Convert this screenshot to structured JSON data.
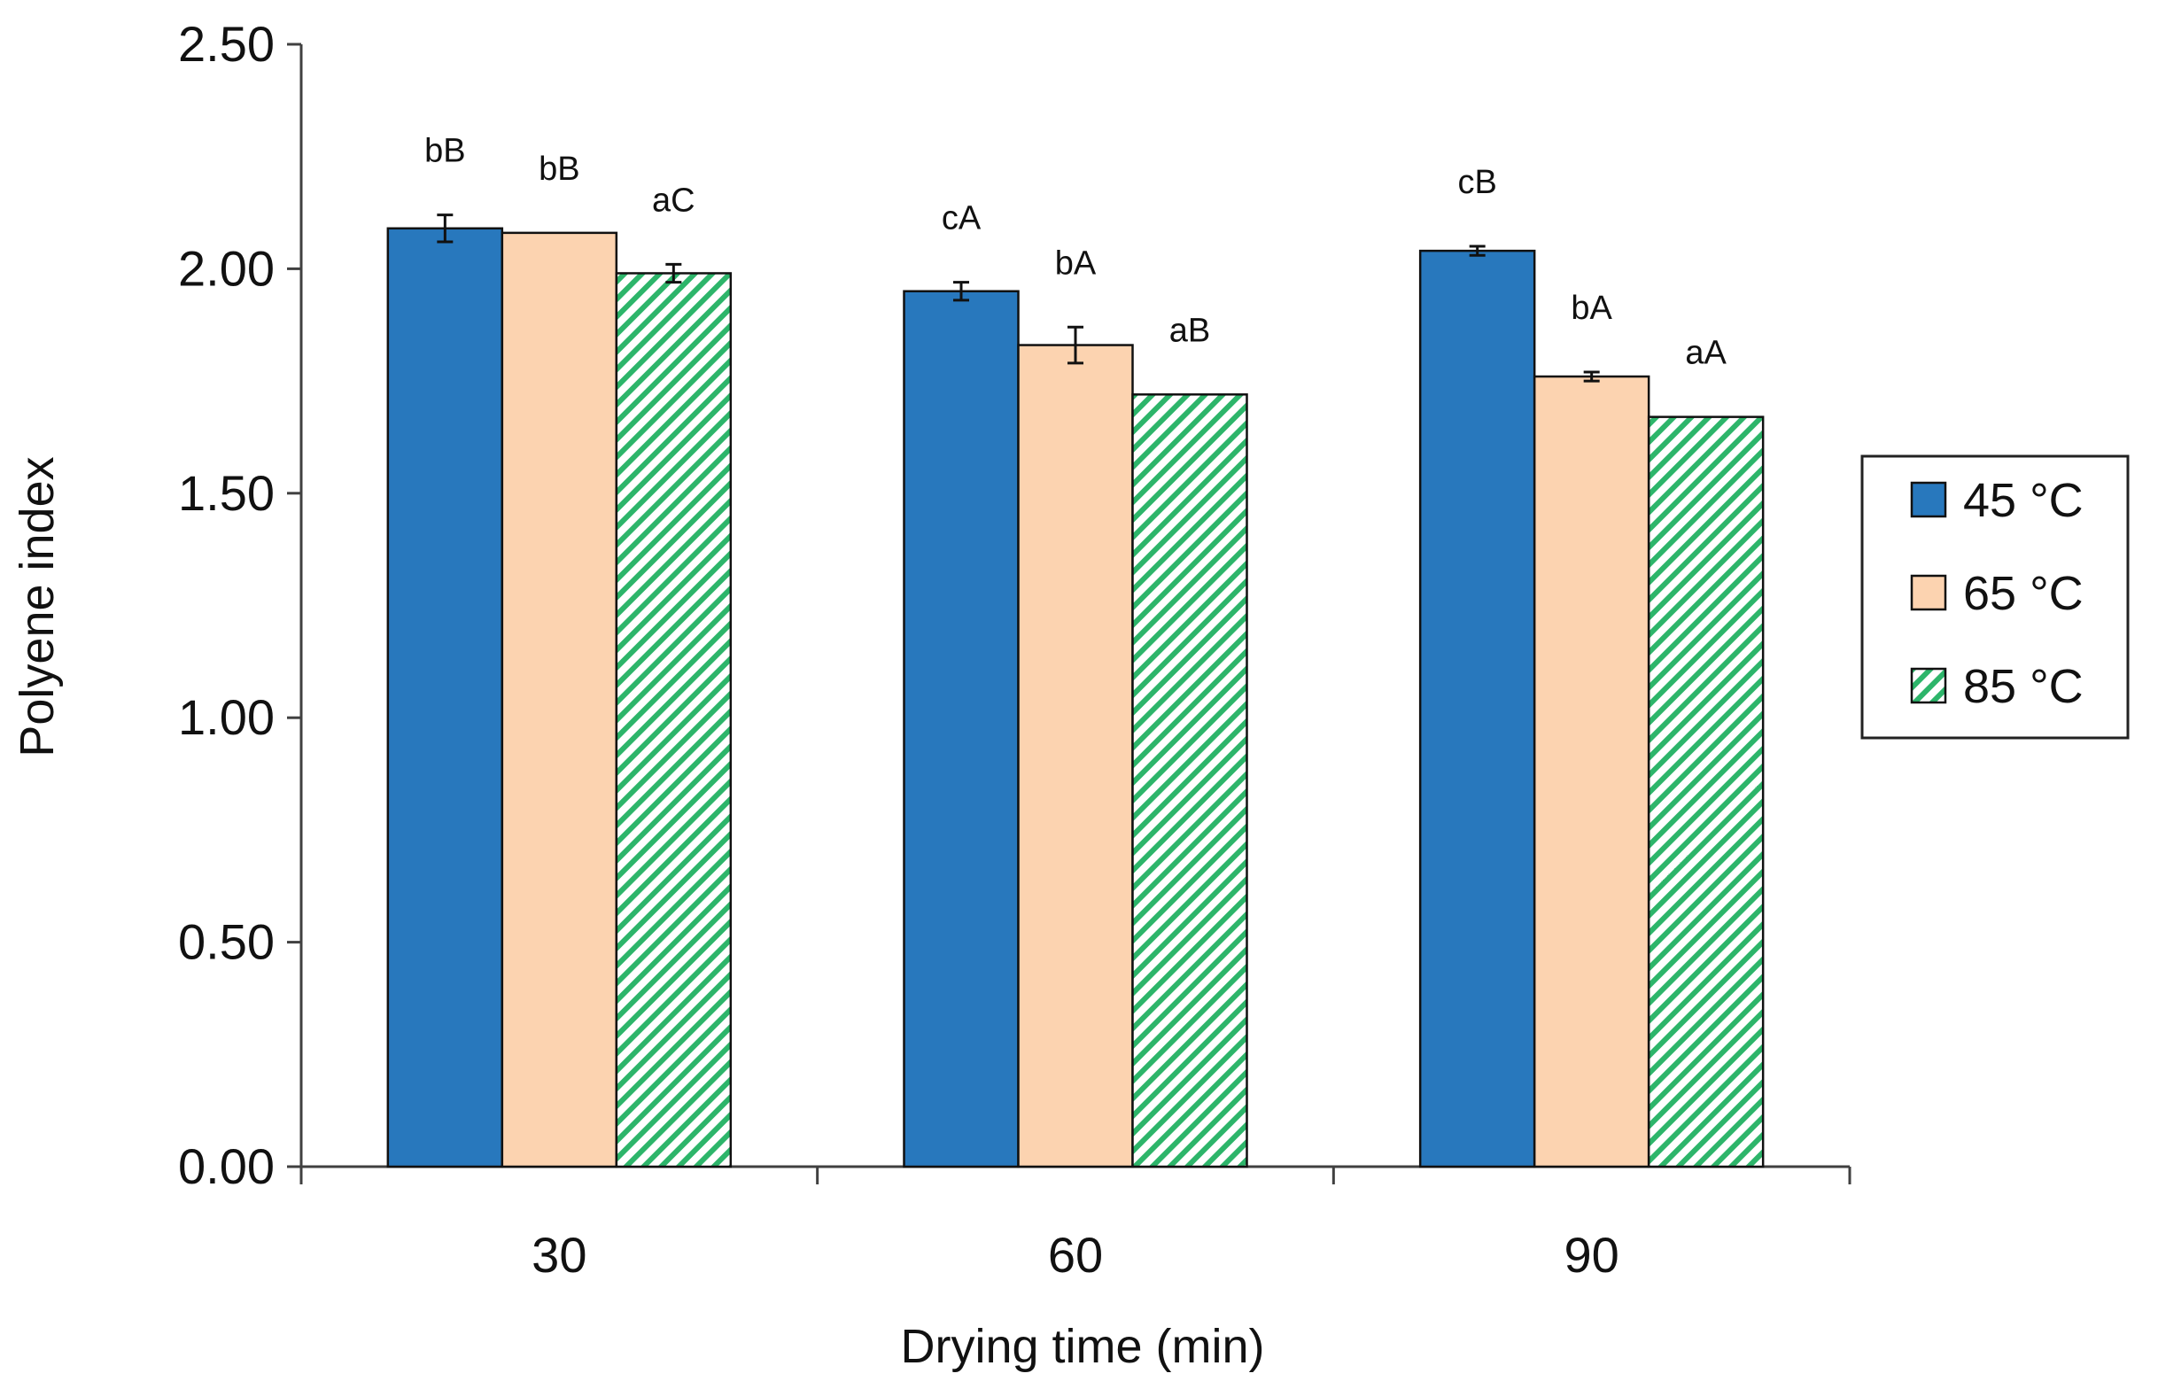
{
  "chart_data": {
    "type": "bar",
    "title": "",
    "xlabel": "Drying time (min)",
    "ylabel": "Polyene index",
    "categories": [
      "30",
      "60",
      "90"
    ],
    "ylim": [
      0,
      2.5
    ],
    "yticks": [
      "0.00",
      "0.50",
      "1.00",
      "1.50",
      "2.00",
      "2.50"
    ],
    "tick_values": [
      0,
      0.5,
      1.0,
      1.5,
      2.0,
      2.5
    ],
    "grid": false,
    "legend_position": "right",
    "series": [
      {
        "name": "45 °C",
        "color": "#2878BD",
        "pattern": "solid",
        "values": [
          2.09,
          1.95,
          2.04
        ],
        "errors": [
          0.03,
          0.02,
          0.01
        ],
        "labels": [
          "bB",
          "cA",
          "cB"
        ]
      },
      {
        "name": "65 °C",
        "color": "#FCD3B0",
        "pattern": "solid",
        "values": [
          2.08,
          1.83,
          1.76
        ],
        "errors": [
          0.0,
          0.04,
          0.01
        ],
        "labels": [
          "bB",
          "bA",
          "bA"
        ]
      },
      {
        "name": "85 °C",
        "color": "#2DB56A",
        "pattern": "diagonal-hatch",
        "values": [
          1.99,
          1.72,
          1.67
        ],
        "errors": [
          0.02,
          0.0,
          0.0
        ],
        "labels": [
          "aC",
          "aB",
          "aA"
        ]
      }
    ]
  }
}
